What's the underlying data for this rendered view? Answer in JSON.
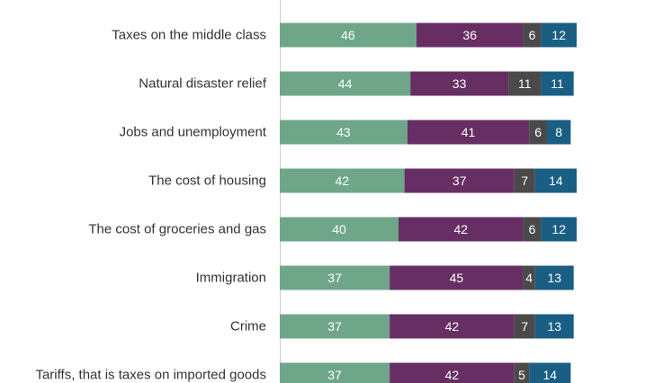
{
  "chart_data": {
    "type": "bar",
    "orientation": "horizontal",
    "stacked": true,
    "xlim": [
      0,
      100
    ],
    "categories": [
      "Taxes on the middle class",
      "Natural disaster relief",
      "Jobs and unemployment",
      "The cost of housing",
      "The cost of groceries and gas",
      "Immigration",
      "Crime",
      "Tariffs, that is taxes on imported goods"
    ],
    "series": [
      {
        "color": "#6fa68a",
        "values": [
          46,
          44,
          43,
          42,
          40,
          37,
          37,
          37
        ]
      },
      {
        "color": "#662e63",
        "values": [
          36,
          33,
          41,
          37,
          42,
          45,
          42,
          42
        ]
      },
      {
        "color": "#4a4a4a",
        "values": [
          6,
          11,
          6,
          7,
          6,
          4,
          7,
          5
        ]
      },
      {
        "color": "#1a5e83",
        "values": [
          12,
          11,
          8,
          14,
          12,
          13,
          13,
          14
        ]
      }
    ],
    "axis_line_color": "#cccccc",
    "grid": false,
    "legend": "none"
  }
}
